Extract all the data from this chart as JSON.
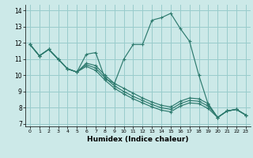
{
  "xlabel": "Humidex (Indice chaleur)",
  "bg_color": "#cce9e8",
  "grid_color": "#99cccc",
  "line_color": "#2d7a6e",
  "xlim": [
    -0.5,
    23.5
  ],
  "ylim": [
    6.85,
    14.35
  ],
  "yticks": [
    7,
    8,
    9,
    10,
    11,
    12,
    13,
    14
  ],
  "xticks": [
    0,
    1,
    2,
    3,
    4,
    5,
    6,
    7,
    8,
    9,
    10,
    11,
    12,
    13,
    14,
    15,
    16,
    17,
    18,
    19,
    20,
    21,
    22,
    23
  ],
  "series": [
    [
      11.9,
      11.2,
      11.6,
      11.0,
      10.4,
      10.2,
      11.3,
      11.4,
      9.8,
      9.5,
      11.0,
      11.9,
      11.9,
      13.4,
      13.55,
      13.82,
      12.9,
      12.1,
      10.0,
      8.2,
      7.4,
      7.8,
      7.9,
      7.55
    ],
    [
      11.9,
      11.2,
      11.6,
      11.0,
      10.4,
      10.2,
      10.75,
      10.6,
      10.0,
      9.5,
      9.2,
      8.9,
      8.6,
      8.35,
      8.15,
      8.05,
      8.4,
      8.6,
      8.55,
      8.25,
      7.4,
      7.8,
      7.9,
      7.55
    ],
    [
      11.9,
      11.2,
      11.6,
      11.0,
      10.4,
      10.2,
      10.65,
      10.45,
      9.85,
      9.35,
      9.0,
      8.7,
      8.45,
      8.2,
      8.0,
      7.9,
      8.25,
      8.45,
      8.4,
      8.1,
      7.4,
      7.8,
      7.9,
      7.55
    ],
    [
      11.9,
      11.2,
      11.6,
      11.0,
      10.4,
      10.2,
      10.55,
      10.3,
      9.7,
      9.2,
      8.85,
      8.55,
      8.3,
      8.05,
      7.85,
      7.75,
      8.1,
      8.3,
      8.25,
      7.95,
      7.4,
      7.8,
      7.9,
      7.55
    ]
  ]
}
